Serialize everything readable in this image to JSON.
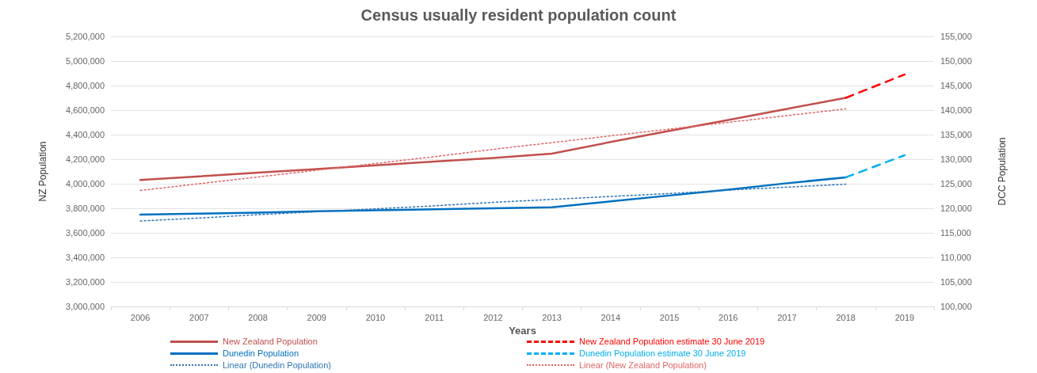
{
  "chart_data": {
    "type": "line",
    "title": "Census usually resident population count",
    "xlabel": "Years",
    "ylabel": "NZ Population",
    "y2label": "DCC Population",
    "categories": [
      "2006",
      "2007",
      "2008",
      "2009",
      "2010",
      "2011",
      "2012",
      "2013",
      "2014",
      "2015",
      "2016",
      "2017",
      "2018",
      "2019"
    ],
    "series": [
      {
        "name": "New Zealand Population",
        "color": "#c0504d",
        "line_style": "solid",
        "values": [
          4030000,
          4060000,
          4090000,
          4120000,
          4150000,
          4180000,
          4210000,
          4245000,
          4340000,
          4430000,
          4520000,
          4610000,
          4700000,
          null
        ]
      },
      {
        "name": "New Zealand Population estimate 30 June 2019",
        "color": "#ff0000",
        "line_style": "dashed",
        "values": [
          null,
          null,
          null,
          null,
          null,
          null,
          null,
          null,
          null,
          null,
          null,
          null,
          4700000,
          4890000
        ]
      },
      {
        "name": "Dunedin Population",
        "color": "#0070c0",
        "line_style": "solid",
        "axis": "y2",
        "values": [
          118700,
          118900,
          119100,
          119400,
          119600,
          119800,
          120000,
          120200,
          121400,
          122600,
          123800,
          125100,
          126300,
          null
        ]
      },
      {
        "name": "Dunedin Population estimate 30 June 2019",
        "color": "#00b0f0",
        "line_style": "dashed",
        "axis": "y2",
        "values": [
          null,
          null,
          null,
          null,
          null,
          null,
          null,
          null,
          null,
          null,
          null,
          null,
          126300,
          130800
        ]
      },
      {
        "name": "Linear (Dunedin Population)",
        "color": "#2e75b6",
        "line_style": "dotted",
        "axis": "y2",
        "values": [
          117400,
          118000,
          118700,
          119300,
          119900,
          120500,
          121200,
          121800,
          122400,
          123000,
          123700,
          124300,
          124900,
          null
        ]
      },
      {
        "name": "Linear (New Zealand Population)",
        "color": "#e06666",
        "line_style": "dotted",
        "values": [
          3945000,
          4000000,
          4055000,
          4110000,
          4165000,
          4220000,
          4280000,
          4335000,
          4390000,
          4445000,
          4500000,
          4555000,
          4610000,
          null
        ]
      }
    ],
    "ylim": [
      3000000,
      5200000
    ],
    "yticks": [
      {
        "value": 3000000,
        "label": "3,000,000"
      },
      {
        "value": 3200000,
        "label": "3,200,000"
      },
      {
        "value": 3400000,
        "label": "3,400,000"
      },
      {
        "value": 3600000,
        "label": "3,600,000"
      },
      {
        "value": 3800000,
        "label": "3,800,000"
      },
      {
        "value": 4000000,
        "label": "4,000,000"
      },
      {
        "value": 4200000,
        "label": "4,200,000"
      },
      {
        "value": 4400000,
        "label": "4,400,000"
      },
      {
        "value": 4600000,
        "label": "4,600,000"
      },
      {
        "value": 4800000,
        "label": "4,800,000"
      },
      {
        "value": 5000000,
        "label": "5,000,000"
      },
      {
        "value": 5200000,
        "label": "5,200,000"
      }
    ],
    "y2lim": [
      100000,
      155000
    ],
    "y2ticks": [
      {
        "value": 100000,
        "label": "100,000"
      },
      {
        "value": 105000,
        "label": "105,000"
      },
      {
        "value": 110000,
        "label": "110,000"
      },
      {
        "value": 115000,
        "label": "115,000"
      },
      {
        "value": 120000,
        "label": "120,000"
      },
      {
        "value": 125000,
        "label": "125,000"
      },
      {
        "value": 130000,
        "label": "130,000"
      },
      {
        "value": 135000,
        "label": "135,000"
      },
      {
        "value": 140000,
        "label": "140,000"
      },
      {
        "value": 145000,
        "label": "145,000"
      },
      {
        "value": 150000,
        "label": "150,000"
      },
      {
        "value": 155000,
        "label": "155,000"
      }
    ],
    "grid": "y",
    "legend": "bottom",
    "marker": "none"
  }
}
